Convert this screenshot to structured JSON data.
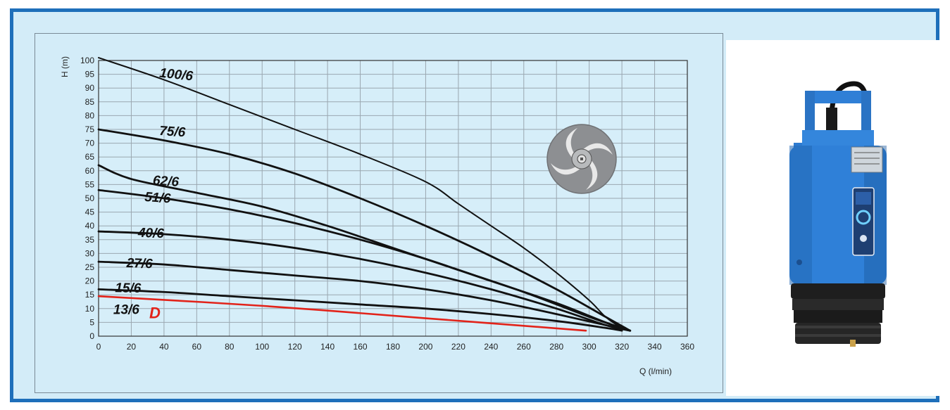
{
  "chart_data": {
    "type": "line",
    "xlabel": "Q (l/min)",
    "ylabel": "H (m)",
    "xlim": [
      0,
      360
    ],
    "ylim": [
      0,
      100
    ],
    "x_ticks": [
      0,
      20,
      40,
      60,
      80,
      100,
      120,
      140,
      160,
      180,
      200,
      220,
      240,
      260,
      280,
      300,
      320,
      340,
      360
    ],
    "y_ticks": [
      0,
      5,
      10,
      15,
      20,
      25,
      30,
      35,
      40,
      45,
      50,
      55,
      60,
      65,
      70,
      75,
      80,
      85,
      90,
      95,
      100
    ],
    "grid": true,
    "series": [
      {
        "name": "100/6",
        "color": "#111111",
        "x": [
          0,
          40,
          80,
          120,
          160,
          200,
          220,
          240,
          260,
          280,
          300,
          310,
          320,
          325
        ],
        "y": [
          101,
          93,
          84,
          75,
          66,
          56,
          48,
          40,
          32,
          23,
          13,
          7,
          3,
          2
        ]
      },
      {
        "name": "75/6",
        "color": "#111111",
        "x": [
          0,
          40,
          80,
          120,
          160,
          200,
          240,
          280,
          310,
          325
        ],
        "y": [
          75,
          71,
          66,
          59,
          50,
          40,
          29,
          17,
          7,
          2
        ]
      },
      {
        "name": "62/6",
        "color": "#111111",
        "x": [
          0,
          20,
          60,
          100,
          140,
          180,
          220,
          260,
          300,
          325
        ],
        "y": [
          62,
          57,
          52,
          47,
          40,
          32,
          24,
          16,
          7,
          2
        ]
      },
      {
        "name": "51/6",
        "color": "#111111",
        "x": [
          0,
          40,
          80,
          120,
          160,
          200,
          240,
          280,
          310,
          325
        ],
        "y": [
          53,
          50,
          46,
          41,
          35,
          28,
          20,
          12,
          5,
          2
        ]
      },
      {
        "name": "40/6",
        "color": "#111111",
        "x": [
          0,
          40,
          80,
          120,
          160,
          200,
          240,
          280,
          310,
          325
        ],
        "y": [
          38,
          37,
          35,
          32,
          28,
          23,
          17,
          10,
          4,
          2
        ]
      },
      {
        "name": "27/6",
        "color": "#111111",
        "x": [
          0,
          40,
          80,
          120,
          160,
          200,
          240,
          280,
          310,
          325
        ],
        "y": [
          27,
          26,
          24,
          22,
          20,
          17,
          13,
          8,
          4,
          2
        ]
      },
      {
        "name": "15/6",
        "color": "#111111",
        "x": [
          0,
          40,
          80,
          120,
          160,
          200,
          240,
          280,
          310,
          320
        ],
        "y": [
          17,
          16,
          14.5,
          13,
          11.5,
          10,
          8,
          5.5,
          3,
          2
        ]
      },
      {
        "name": "13/6",
        "color": "#e2231a",
        "x": [
          0,
          100,
          200,
          298
        ],
        "y": [
          14.5,
          11,
          6.5,
          2
        ]
      }
    ],
    "extra_labels": [
      "D"
    ]
  },
  "colors": {
    "frame": "#1e6fba",
    "background": "#d3ecf8",
    "grid": "#9aa7b0",
    "pump_blue": "#2f7fd6",
    "pump_black": "#1a1a1a"
  },
  "images": {
    "impeller": "impeller-illustration",
    "pump": "submersible-pump-photo"
  }
}
